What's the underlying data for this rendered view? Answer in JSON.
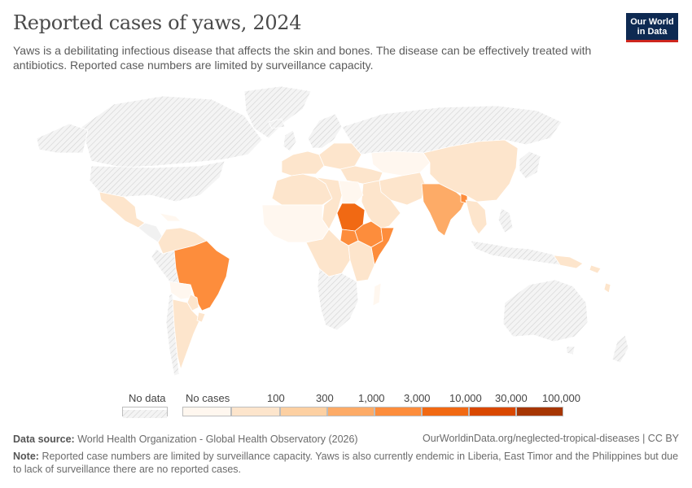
{
  "title": "Reported cases of yaws, 2024",
  "subtitle": "Yaws is a debilitating infectious disease that affects the skin and bones. The disease can be effectively treated with antibiotics. Reported case numbers are limited by surveillance capacity.",
  "logo": {
    "line1": "Our World",
    "line2": "in Data"
  },
  "legend": {
    "no_data_label": "No data",
    "no_cases_label": "No cases",
    "ticks": [
      "100",
      "300",
      "1,000",
      "3,000",
      "10,000",
      "30,000",
      "100,000"
    ],
    "colors": {
      "no_cases": "#fff7ef",
      "bin_0_100": "#fde5cc",
      "bin_100_300": "#fdd0a2",
      "bin_300_1000": "#fdab67",
      "bin_1000_3000": "#fd8d3c",
      "bin_3000_10000": "#f16913",
      "bin_10000_30000": "#d94801",
      "bin_30000_100000": "#a63603"
    }
  },
  "map_colors": {
    "no_data_fill": "#f1f1f1",
    "hatch": "#d4d4d4",
    "border": "#ffffff"
  },
  "footer": {
    "source_label": "Data source:",
    "source_text": "World Health Organization - Global Health Observatory (2026)",
    "url": "OurWorldinData.org/neglected-tropical-diseases | CC BY",
    "note_label": "Note:",
    "note_text": "Reported case numbers are limited by surveillance capacity. Yaws is also currently endemic in Liberia, East Timor and the Philippines but due to lack of surveillance there are no reported cases."
  }
}
